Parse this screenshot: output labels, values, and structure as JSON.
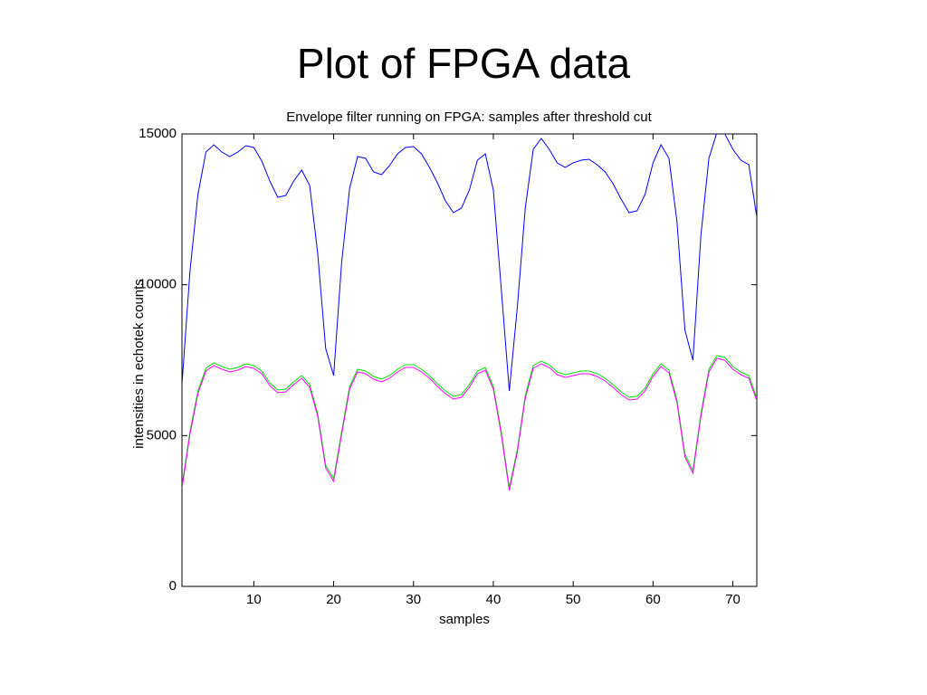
{
  "slide_title": "Plot of FPGA data",
  "chart_data": {
    "type": "line",
    "title": "Envelope filter running on FPGA: samples after threshold cut",
    "xlabel": "samples",
    "ylabel": "intensities in echotek counts",
    "x": [
      1,
      2,
      3,
      4,
      5,
      6,
      7,
      8,
      9,
      10,
      11,
      12,
      13,
      14,
      15,
      16,
      17,
      18,
      19,
      20,
      21,
      22,
      23,
      24,
      25,
      26,
      27,
      28,
      29,
      30,
      31,
      32,
      33,
      34,
      35,
      36,
      37,
      38,
      39,
      40,
      41,
      42,
      43,
      44,
      45,
      46,
      47,
      48,
      49,
      50,
      51,
      52,
      53,
      54,
      55,
      56,
      57,
      58,
      59,
      60,
      61,
      62,
      63,
      64,
      65,
      66,
      67,
      68,
      69,
      70,
      71,
      72,
      73
    ],
    "series": [
      {
        "color": "#0000ff",
        "values": [
          6690,
          10440,
          12990,
          14400,
          14640,
          14400,
          14250,
          14400,
          14610,
          14550,
          14100,
          13440,
          12900,
          12960,
          13440,
          13800,
          13290,
          11040,
          7890,
          6990,
          10740,
          13200,
          14250,
          14190,
          13740,
          13650,
          13950,
          14340,
          14550,
          14580,
          14340,
          13890,
          13380,
          12780,
          12390,
          12540,
          13140,
          14130,
          14340,
          13140,
          9840,
          6480,
          9240,
          12540,
          14490,
          14850,
          14490,
          14040,
          13890,
          14040,
          14130,
          14160,
          13980,
          13740,
          13350,
          12840,
          12390,
          12450,
          12990,
          14040,
          14640,
          14190,
          12090,
          8490,
          7500,
          11640,
          14190,
          15050,
          15000,
          14490,
          14130,
          13980,
          12240
        ]
      },
      {
        "color": "#00dd00",
        "values": [
          3330,
          5130,
          6480,
          7230,
          7410,
          7290,
          7200,
          7260,
          7380,
          7320,
          7140,
          6750,
          6510,
          6540,
          6780,
          6990,
          6690,
          5730,
          4020,
          3570,
          5130,
          6630,
          7200,
          7140,
          6960,
          6870,
          6990,
          7200,
          7350,
          7350,
          7200,
          6990,
          6720,
          6480,
          6300,
          6360,
          6690,
          7140,
          7260,
          6630,
          5130,
          3270,
          4530,
          6330,
          7320,
          7470,
          7350,
          7110,
          7020,
          7080,
          7140,
          7140,
          7050,
          6900,
          6690,
          6450,
          6270,
          6300,
          6570,
          7050,
          7380,
          7170,
          6180,
          4380,
          3840,
          5730,
          7200,
          7650,
          7590,
          7290,
          7110,
          6990,
          6240
        ]
      },
      {
        "color": "#ff00ff",
        "values": [
          3240,
          5040,
          6390,
          7140,
          7320,
          7200,
          7110,
          7170,
          7290,
          7230,
          7050,
          6660,
          6420,
          6450,
          6690,
          6900,
          6600,
          5640,
          3930,
          3480,
          5040,
          6540,
          7110,
          7050,
          6870,
          6780,
          6900,
          7110,
          7260,
          7260,
          7110,
          6900,
          6630,
          6390,
          6210,
          6270,
          6600,
          7050,
          7170,
          6540,
          5040,
          3180,
          4440,
          6240,
          7230,
          7380,
          7260,
          7020,
          6930,
          6990,
          7050,
          7050,
          6960,
          6810,
          6600,
          6360,
          6180,
          6210,
          6480,
          6960,
          7290,
          7080,
          6090,
          4290,
          3750,
          5640,
          7110,
          7560,
          7500,
          7200,
          7020,
          6900,
          6150
        ]
      }
    ],
    "xlim": [
      1,
      73
    ],
    "xticks": [
      10,
      20,
      30,
      40,
      50,
      60,
      70
    ],
    "ylim": [
      0,
      15000
    ],
    "yticks": [
      0,
      5000,
      10000,
      15000
    ]
  }
}
